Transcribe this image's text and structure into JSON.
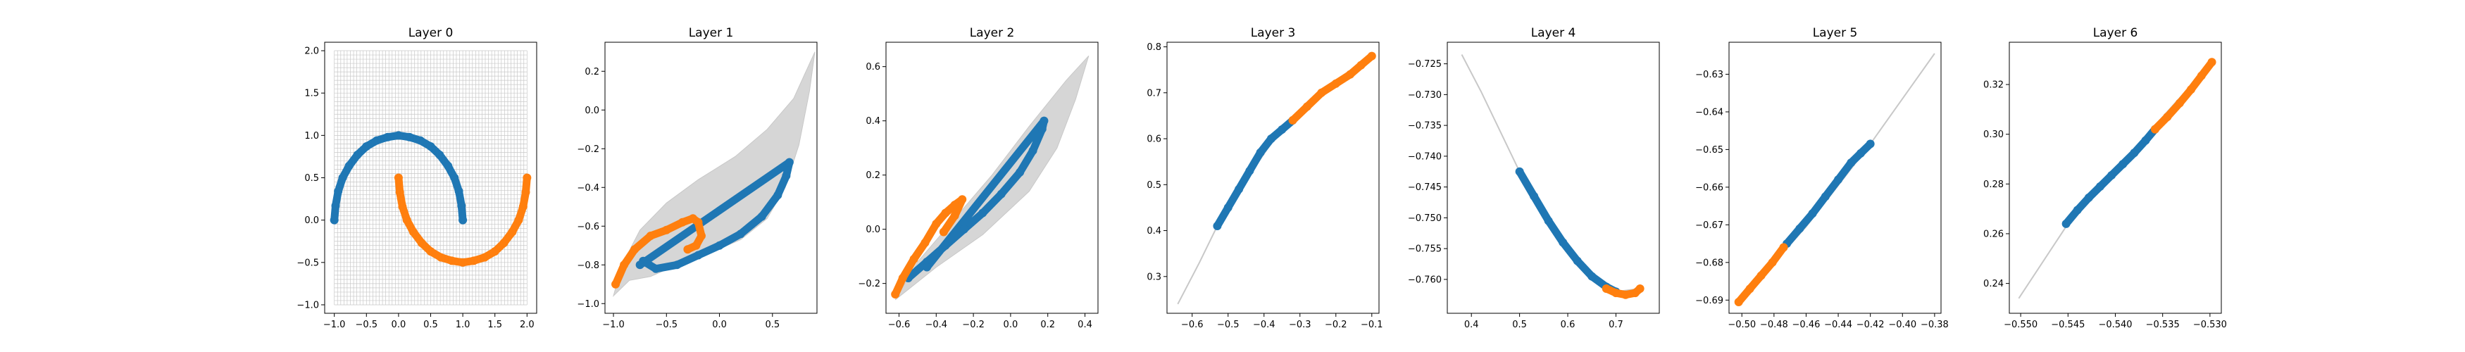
{
  "colors": {
    "series_a": "#1f77b4",
    "series_b": "#ff7f0e",
    "grid_mesh": "#c8c8c8",
    "axes": "#000000"
  },
  "chart_data": [
    {
      "type": "scatter",
      "title": "Layer 0",
      "xlim": [
        -1.15,
        2.15
      ],
      "ylim": [
        -1.1,
        2.1
      ],
      "xticks": [
        -1.0,
        -0.5,
        0.0,
        0.5,
        1.0,
        1.5,
        2.0
      ],
      "xtick_labels": [
        "−1.0",
        "−0.5",
        "0.0",
        "0.5",
        "1.0",
        "1.5",
        "2.0"
      ],
      "yticks": [
        -1.0,
        -0.5,
        0.0,
        0.5,
        1.0,
        1.5,
        2.0
      ],
      "ytick_labels": [
        "−1.0",
        "−0.5",
        "0.0",
        "0.5",
        "1.0",
        "1.5",
        "2.0"
      ],
      "background": "grid_mesh",
      "series": [
        {
          "points": [
            [
              -1.0,
              0.0
            ],
            [
              -0.98,
              0.17
            ],
            [
              -0.94,
              0.34
            ],
            [
              -0.87,
              0.5
            ],
            [
              -0.77,
              0.64
            ],
            [
              -0.64,
              0.77
            ],
            [
              -0.5,
              0.87
            ],
            [
              -0.34,
              0.94
            ],
            [
              -0.17,
              0.98
            ],
            [
              0.0,
              1.0
            ],
            [
              0.17,
              0.98
            ],
            [
              0.34,
              0.94
            ],
            [
              0.5,
              0.87
            ],
            [
              0.64,
              0.77
            ],
            [
              0.77,
              0.64
            ],
            [
              0.87,
              0.5
            ],
            [
              0.94,
              0.34
            ],
            [
              0.98,
              0.17
            ],
            [
              1.0,
              0.0
            ]
          ]
        },
        {
          "points": [
            [
              0.0,
              0.5
            ],
            [
              0.02,
              0.33
            ],
            [
              0.06,
              0.16
            ],
            [
              0.13,
              0.0
            ],
            [
              0.23,
              -0.14
            ],
            [
              0.36,
              -0.27
            ],
            [
              0.5,
              -0.37
            ],
            [
              0.66,
              -0.44
            ],
            [
              0.83,
              -0.48
            ],
            [
              1.0,
              -0.5
            ],
            [
              1.17,
              -0.48
            ],
            [
              1.34,
              -0.44
            ],
            [
              1.5,
              -0.37
            ],
            [
              1.64,
              -0.27
            ],
            [
              1.77,
              -0.14
            ],
            [
              1.87,
              0.0
            ],
            [
              1.94,
              0.16
            ],
            [
              1.98,
              0.33
            ],
            [
              2.0,
              0.5
            ]
          ]
        }
      ]
    },
    {
      "type": "scatter",
      "title": "Layer 1",
      "xlim": [
        -1.08,
        0.92
      ],
      "ylim": [
        -1.05,
        0.35
      ],
      "xticks": [
        -1.0,
        -0.5,
        0.0,
        0.5
      ],
      "xtick_labels": [
        "−1.0",
        "−0.5",
        "0.0",
        "0.5"
      ],
      "yticks": [
        -1.0,
        -0.8,
        -0.6,
        -0.4,
        -0.2,
        0.0,
        0.2
      ],
      "ytick_labels": [
        "−1.0",
        "−0.8",
        "−0.6",
        "−0.4",
        "−0.2",
        "0.0",
        "0.2"
      ],
      "background": "grid_mesh",
      "band": [
        [
          -1.0,
          -0.96
        ],
        [
          -0.85,
          -0.88
        ],
        [
          -0.65,
          -0.86
        ],
        [
          -0.4,
          -0.8
        ],
        [
          -0.1,
          -0.74
        ],
        [
          0.2,
          -0.67
        ],
        [
          0.45,
          -0.56
        ],
        [
          0.62,
          -0.4
        ],
        [
          0.75,
          -0.18
        ],
        [
          0.85,
          0.1
        ],
        [
          0.9,
          0.3
        ],
        [
          0.7,
          0.06
        ],
        [
          0.45,
          -0.1
        ],
        [
          0.15,
          -0.24
        ],
        [
          -0.2,
          -0.36
        ],
        [
          -0.5,
          -0.48
        ],
        [
          -0.75,
          -0.62
        ],
        [
          -0.92,
          -0.8
        ],
        [
          -1.0,
          -0.96
        ]
      ],
      "series": [
        {
          "points": [
            [
              -0.72,
              -0.78
            ],
            [
              -0.6,
              -0.82
            ],
            [
              -0.4,
              -0.8
            ],
            [
              -0.2,
              -0.75
            ],
            [
              0.0,
              -0.7
            ],
            [
              0.2,
              -0.64
            ],
            [
              0.4,
              -0.55
            ],
            [
              0.55,
              -0.44
            ],
            [
              0.63,
              -0.34
            ],
            [
              0.66,
              -0.27
            ],
            [
              -0.75,
              -0.8
            ]
          ]
        },
        {
          "points": [
            [
              -0.98,
              -0.9
            ],
            [
              -0.9,
              -0.8
            ],
            [
              -0.8,
              -0.72
            ],
            [
              -0.65,
              -0.65
            ],
            [
              -0.5,
              -0.62
            ],
            [
              -0.35,
              -0.58
            ],
            [
              -0.25,
              -0.56
            ],
            [
              -0.2,
              -0.58
            ],
            [
              -0.17,
              -0.65
            ],
            [
              -0.22,
              -0.7
            ],
            [
              -0.3,
              -0.72
            ]
          ]
        }
      ]
    },
    {
      "type": "scatter",
      "title": "Layer 2",
      "xlim": [
        -0.67,
        0.47
      ],
      "ylim": [
        -0.31,
        0.69
      ],
      "xticks": [
        -0.6,
        -0.4,
        -0.2,
        0.0,
        0.2,
        0.4
      ],
      "xtick_labels": [
        "−0.6",
        "−0.4",
        "−0.2",
        "0.0",
        "0.2",
        "0.4"
      ],
      "yticks": [
        -0.2,
        0.0,
        0.2,
        0.4,
        0.6
      ],
      "ytick_labels": [
        "−0.2",
        "0.0",
        "0.2",
        "0.4",
        "0.6"
      ],
      "background": "grid_mesh",
      "band": [
        [
          -0.62,
          -0.26
        ],
        [
          -0.4,
          -0.14
        ],
        [
          -0.15,
          -0.02
        ],
        [
          0.1,
          0.14
        ],
        [
          0.25,
          0.3
        ],
        [
          0.35,
          0.48
        ],
        [
          0.42,
          0.64
        ],
        [
          0.3,
          0.55
        ],
        [
          0.1,
          0.38
        ],
        [
          -0.1,
          0.2
        ],
        [
          -0.3,
          0.04
        ],
        [
          -0.5,
          -0.12
        ],
        [
          -0.62,
          -0.26
        ]
      ],
      "series": [
        {
          "points": [
            [
              -0.55,
              -0.18
            ],
            [
              -0.45,
              -0.12
            ],
            [
              -0.35,
              -0.06
            ],
            [
              -0.25,
              0.0
            ],
            [
              -0.15,
              0.06
            ],
            [
              -0.05,
              0.13
            ],
            [
              0.05,
              0.21
            ],
            [
              0.12,
              0.29
            ],
            [
              0.17,
              0.37
            ],
            [
              0.18,
              0.4
            ],
            [
              -0.45,
              -0.14
            ]
          ]
        },
        {
          "points": [
            [
              -0.62,
              -0.24
            ],
            [
              -0.58,
              -0.18
            ],
            [
              -0.52,
              -0.11
            ],
            [
              -0.46,
              -0.05
            ],
            [
              -0.4,
              0.02
            ],
            [
              -0.35,
              0.06
            ],
            [
              -0.3,
              0.09
            ],
            [
              -0.26,
              0.11
            ],
            [
              -0.3,
              0.05
            ],
            [
              -0.36,
              -0.01
            ]
          ]
        }
      ]
    },
    {
      "type": "scatter",
      "title": "Layer 3",
      "xlim": [
        -0.67,
        -0.08
      ],
      "ylim": [
        0.22,
        0.81
      ],
      "xticks": [
        -0.6,
        -0.5,
        -0.4,
        -0.3,
        -0.2,
        -0.1
      ],
      "xtick_labels": [
        "−0.6",
        "−0.5",
        "−0.4",
        "−0.3",
        "−0.2",
        "−0.1"
      ],
      "yticks": [
        0.3,
        0.4,
        0.5,
        0.6,
        0.7,
        0.8
      ],
      "ytick_labels": [
        "0.3",
        "0.4",
        "0.5",
        "0.6",
        "0.7",
        "0.8"
      ],
      "background": "curve",
      "curve": [
        [
          -0.64,
          0.24
        ],
        [
          -0.58,
          0.33
        ],
        [
          -0.53,
          0.41
        ],
        [
          -0.45,
          0.51
        ],
        [
          -0.38,
          0.59
        ],
        [
          -0.3,
          0.65
        ],
        [
          -0.2,
          0.72
        ],
        [
          -0.1,
          0.78
        ]
      ],
      "series": [
        {
          "points": [
            [
              -0.53,
              0.41
            ],
            [
              -0.5,
              0.45
            ],
            [
              -0.47,
              0.49
            ],
            [
              -0.44,
              0.53
            ],
            [
              -0.41,
              0.57
            ],
            [
              -0.38,
              0.6
            ],
            [
              -0.35,
              0.62
            ],
            [
              -0.32,
              0.64
            ]
          ]
        },
        {
          "points": [
            [
              -0.32,
              0.64
            ],
            [
              -0.28,
              0.67
            ],
            [
              -0.24,
              0.7
            ],
            [
              -0.2,
              0.72
            ],
            [
              -0.16,
              0.74
            ],
            [
              -0.13,
              0.76
            ],
            [
              -0.1,
              0.78
            ]
          ]
        }
      ]
    },
    {
      "type": "scatter",
      "title": "Layer 4",
      "xlim": [
        0.35,
        0.79
      ],
      "ylim": [
        -0.7655,
        -0.7215
      ],
      "xticks": [
        0.4,
        0.5,
        0.6,
        0.7
      ],
      "xtick_labels": [
        "0.4",
        "0.5",
        "0.6",
        "0.7"
      ],
      "yticks": [
        -0.725,
        -0.73,
        -0.735,
        -0.74,
        -0.745,
        -0.75,
        -0.755,
        -0.76
      ],
      "ytick_labels": [
        "−0.725",
        "−0.730",
        "−0.735",
        "−0.740",
        "−0.745",
        "−0.750",
        "−0.755",
        "−0.760"
      ],
      "background": "curve",
      "curve": [
        [
          0.38,
          -0.7235
        ],
        [
          0.42,
          -0.7295
        ],
        [
          0.46,
          -0.736
        ],
        [
          0.5,
          -0.7425
        ],
        [
          0.55,
          -0.749
        ],
        [
          0.6,
          -0.7545
        ],
        [
          0.65,
          -0.759
        ],
        [
          0.7,
          -0.762
        ],
        [
          0.75,
          -0.7615
        ]
      ],
      "series": [
        {
          "points": [
            [
              0.5,
              -0.7425
            ],
            [
              0.53,
              -0.7465
            ],
            [
              0.56,
              -0.7505
            ],
            [
              0.59,
              -0.754
            ],
            [
              0.62,
              -0.757
            ],
            [
              0.65,
              -0.7595
            ],
            [
              0.68,
              -0.7612
            ],
            [
              0.7,
              -0.762
            ]
          ]
        },
        {
          "points": [
            [
              0.68,
              -0.7615
            ],
            [
              0.7,
              -0.7622
            ],
            [
              0.72,
              -0.7625
            ],
            [
              0.74,
              -0.7622
            ],
            [
              0.75,
              -0.7615
            ]
          ]
        }
      ]
    },
    {
      "type": "scatter",
      "title": "Layer 5",
      "xlim": [
        -0.508,
        -0.376
      ],
      "ylim": [
        -0.6935,
        -0.6215
      ],
      "xticks": [
        -0.5,
        -0.48,
        -0.46,
        -0.44,
        -0.42,
        -0.4,
        -0.38
      ],
      "xtick_labels": [
        "−0.50",
        "−0.48",
        "−0.46",
        "−0.44",
        "−0.42",
        "−0.40",
        "−0.38"
      ],
      "yticks": [
        -0.63,
        -0.64,
        -0.65,
        -0.66,
        -0.67,
        -0.68,
        -0.69
      ],
      "ytick_labels": [
        "−0.63",
        "−0.64",
        "−0.65",
        "−0.66",
        "−0.67",
        "−0.68",
        "−0.69"
      ],
      "background": "curve",
      "curve": [
        [
          -0.502,
          -0.6905
        ],
        [
          -0.46,
          -0.6705
        ],
        [
          -0.42,
          -0.6485
        ],
        [
          -0.38,
          -0.6245
        ]
      ],
      "series": [
        {
          "points": [
            [
              -0.472,
              -0.675
            ],
            [
              -0.464,
              -0.671
            ],
            [
              -0.456,
              -0.667
            ],
            [
              -0.448,
              -0.6625
            ],
            [
              -0.44,
              -0.658
            ],
            [
              -0.432,
              -0.6535
            ],
            [
              -0.426,
              -0.651
            ],
            [
              -0.42,
              -0.6485
            ]
          ]
        },
        {
          "points": [
            [
              -0.502,
              -0.6905
            ],
            [
              -0.495,
              -0.687
            ],
            [
              -0.488,
              -0.6835
            ],
            [
              -0.481,
              -0.68
            ],
            [
              -0.474,
              -0.676
            ]
          ]
        }
      ]
    },
    {
      "type": "scatter",
      "title": "Layer 6",
      "xlim": [
        -0.5512,
        -0.5288
      ],
      "ylim": [
        0.228,
        0.337
      ],
      "xticks": [
        -0.55,
        -0.545,
        -0.54,
        -0.535,
        -0.53
      ],
      "xtick_labels": [
        "−0.550",
        "−0.545",
        "−0.540",
        "−0.535",
        "−0.530"
      ],
      "yticks": [
        0.24,
        0.26,
        0.28,
        0.3,
        0.32
      ],
      "ytick_labels": [
        "0.24",
        "0.26",
        "0.28",
        "0.30",
        "0.32"
      ],
      "background": "curve",
      "curve": [
        [
          -0.5502,
          0.234
        ],
        [
          -0.545,
          0.264
        ],
        [
          -0.54,
          0.285
        ],
        [
          -0.535,
          0.307
        ],
        [
          -0.5298,
          0.329
        ]
      ],
      "series": [
        {
          "points": [
            [
              -0.5452,
              0.264
            ],
            [
              -0.544,
              0.2695
            ],
            [
              -0.5428,
              0.2745
            ],
            [
              -0.5416,
              0.279
            ],
            [
              -0.5404,
              0.2835
            ],
            [
              -0.5392,
              0.288
            ],
            [
              -0.538,
              0.2925
            ],
            [
              -0.5368,
              0.2975
            ],
            [
              -0.5358,
              0.302
            ]
          ]
        },
        {
          "points": [
            [
              -0.5358,
              0.302
            ],
            [
              -0.5345,
              0.307
            ],
            [
              -0.5332,
              0.3125
            ],
            [
              -0.532,
              0.318
            ],
            [
              -0.5309,
              0.3235
            ],
            [
              -0.5298,
              0.329
            ]
          ]
        }
      ]
    }
  ]
}
